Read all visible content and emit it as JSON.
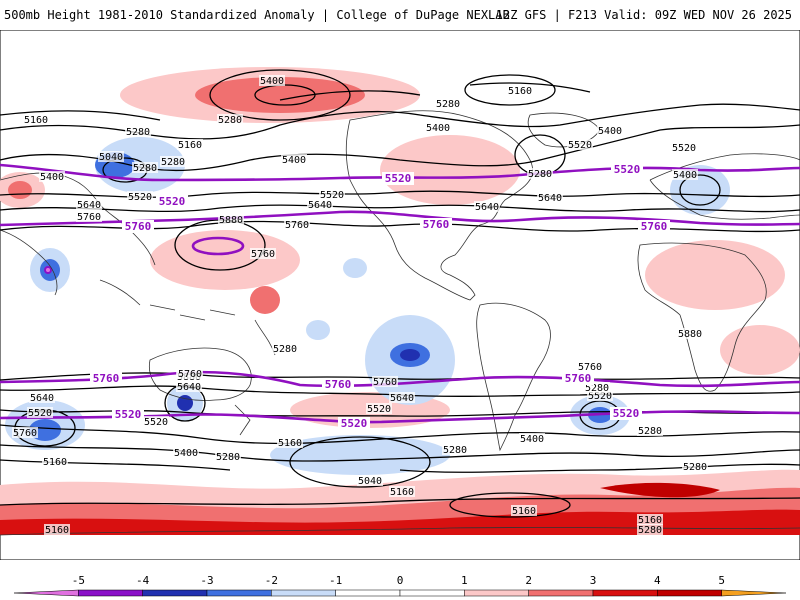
{
  "header": {
    "left_title": "500mb Height 1981-2010 Standardized Anomaly | College of DuPage NEXLAB",
    "right_title": "12Z GFS | F213 Valid: 09Z WED NOV 26 2025"
  },
  "colors": {
    "neg5": "#e070e0",
    "neg4": "#8a10c8",
    "neg3": "#2030b0",
    "neg2": "#3f70e0",
    "neg1": "#c8dcf8",
    "zero": "#ffffff",
    "pos1": "#fcc8c8",
    "pos2": "#f07070",
    "pos3": "#d81010",
    "pos4": "#c00000",
    "pos5": "#f4a020",
    "purple_contour": "#9010c0"
  },
  "colorbar": {
    "ticks": [
      "-5",
      "-4",
      "-3",
      "-2",
      "-1",
      "0",
      "1",
      "2",
      "3",
      "4",
      "5"
    ]
  },
  "contour_labels": {
    "black": [
      "5400",
      "5280",
      "5160",
      "5160",
      "5280",
      "5400",
      "5280",
      "5400",
      "5160",
      "5280",
      "5400",
      "5520",
      "5040",
      "5400",
      "5280",
      "5640",
      "5520",
      "5760",
      "5880",
      "5640",
      "5520",
      "5760",
      "5640",
      "5280",
      "5400",
      "5520",
      "5640",
      "5760",
      "5280",
      "5880",
      "5880",
      "5640",
      "5760",
      "5760",
      "5760",
      "5640",
      "5520",
      "5520",
      "5520",
      "5400",
      "5760",
      "5640",
      "5520",
      "5280",
      "5160",
      "5400",
      "5280",
      "5160",
      "5040",
      "5160",
      "5280",
      "5160",
      "5160",
      "5280",
      "5280",
      "5160",
      "5280"
    ],
    "purple": [
      "5520",
      "5520",
      "5520",
      "5760",
      "5760",
      "5760",
      "5760",
      "5760",
      "5760",
      "5520",
      "5520",
      "5520"
    ]
  }
}
